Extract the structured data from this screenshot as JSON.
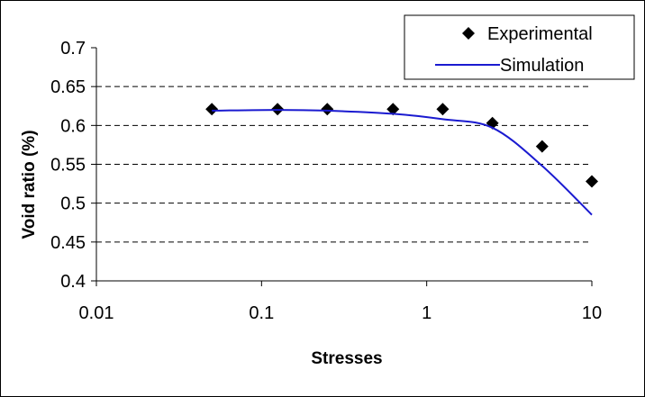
{
  "chart_data": {
    "type": "scatter",
    "xlabel": "Stresses",
    "ylabel": "Void ratio (%)",
    "xscale": "log",
    "xlim": [
      0.01,
      10
    ],
    "ylim": [
      0.4,
      0.7
    ],
    "x_ticks": [
      "0.01",
      "0.1",
      "1",
      "10"
    ],
    "y_ticks": [
      "0.4",
      "0.45",
      "0.5",
      "0.55",
      "0.6",
      "0.65",
      "0.7"
    ],
    "grid": "horizontal dashed",
    "legend_position": "top-right",
    "series": [
      {
        "name": "Experimental",
        "kind": "markers",
        "marker": "diamond",
        "color": "#000000",
        "x": [
          0.05,
          0.125,
          0.25,
          0.625,
          1.25,
          2.5,
          5,
          10
        ],
        "y": [
          0.621,
          0.621,
          0.621,
          0.621,
          0.621,
          0.603,
          0.573,
          0.528
        ]
      },
      {
        "name": "Simulation",
        "kind": "line",
        "color": "#1a1ad0",
        "x": [
          0.05,
          0.125,
          0.25,
          0.625,
          1.25,
          2.5,
          5,
          10
        ],
        "y": [
          0.619,
          0.62,
          0.619,
          0.615,
          0.608,
          0.597,
          0.548,
          0.485
        ]
      }
    ]
  }
}
